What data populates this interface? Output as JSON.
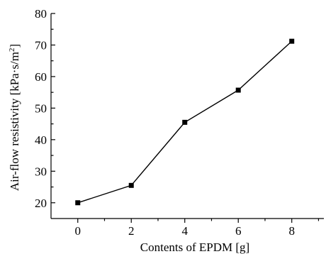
{
  "chart_data": {
    "type": "line",
    "xlabel": "Contents of EPDM [g]",
    "ylabel_main": "Air-flow resistivity [kPa·s/m",
    "ylabel_sup": "2",
    "ylabel_end": "]",
    "xlim": [
      -1,
      9.2
    ],
    "ylim": [
      15,
      80
    ],
    "xticks": [
      0,
      2,
      4,
      6,
      8
    ],
    "yticks": [
      20,
      30,
      40,
      50,
      60,
      70,
      80
    ],
    "xtick_labels": [
      "0",
      "2",
      "4",
      "6",
      "8"
    ],
    "ytick_labels": [
      "20",
      "30",
      "40",
      "50",
      "60",
      "70",
      "80"
    ],
    "grid": false,
    "series": [
      {
        "x": [
          0,
          2,
          4,
          6,
          8
        ],
        "values": [
          20,
          25.5,
          45.5,
          55.7,
          71.2
        ],
        "color": "#000000",
        "marker": "square"
      }
    ]
  }
}
